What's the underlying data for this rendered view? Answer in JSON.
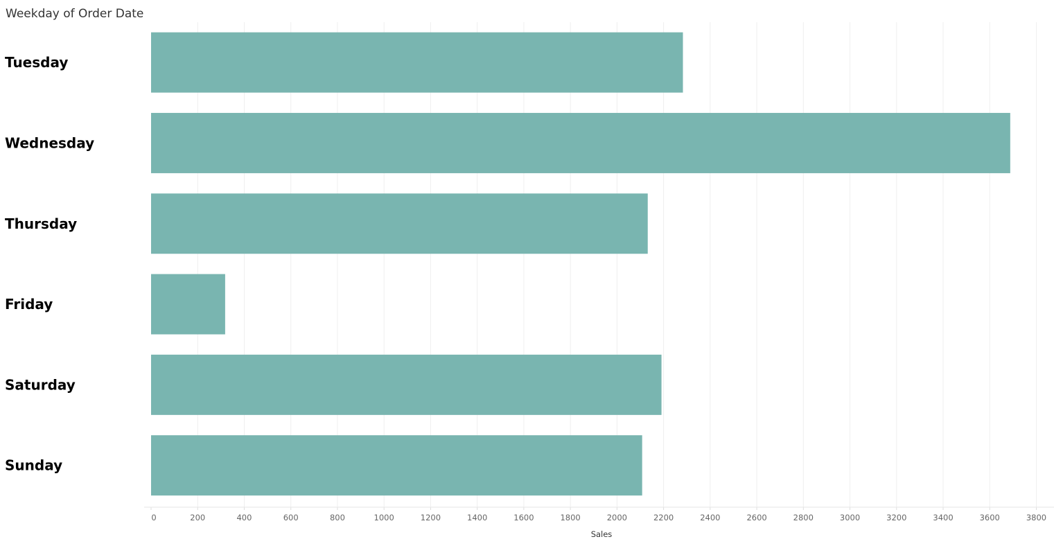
{
  "chart_data": {
    "type": "bar",
    "orientation": "horizontal",
    "row_header": "Weekday of Order Date",
    "categories": [
      "Tuesday",
      "Wednesday",
      "Thursday",
      "Friday",
      "Saturday",
      "Sunday"
    ],
    "values": [
      2283,
      3688,
      2132,
      318,
      2191,
      2108
    ],
    "xlabel": "Sales",
    "xlim": [
      0,
      3800
    ],
    "xticks": [
      0,
      200,
      400,
      600,
      800,
      1000,
      1200,
      1400,
      1600,
      1800,
      2000,
      2200,
      2400,
      2600,
      2800,
      3000,
      3200,
      3400,
      3600,
      3800
    ],
    "grid": true,
    "bar_color": "#79B5B0",
    "grid_color": "#EFEFEF"
  }
}
